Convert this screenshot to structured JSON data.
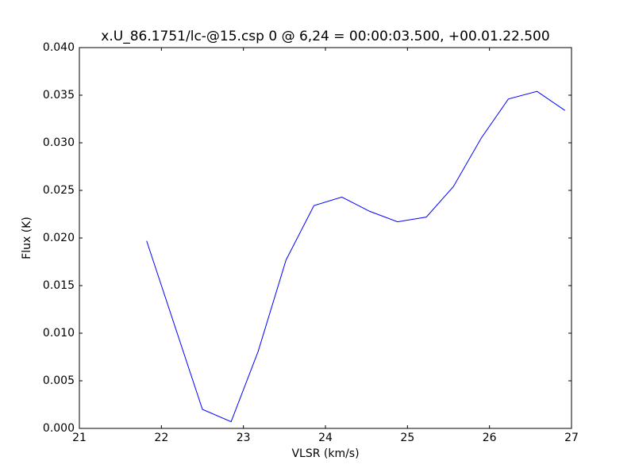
{
  "chart_data": {
    "type": "line",
    "title": "x.U_86.1751/lc-@15.csp 0 @ 6,24 = 00:00:03.500, +00.01.22.500",
    "xlabel": "VLSR (km/s)",
    "ylabel": "Flux (K)",
    "x": [
      21.82,
      22.5,
      22.85,
      23.18,
      23.52,
      23.86,
      24.2,
      24.54,
      24.88,
      25.23,
      25.56,
      25.9,
      26.23,
      26.58,
      26.92
    ],
    "series": [
      {
        "name": "Flux",
        "color": "#0000ff",
        "values": [
          0.0197,
          0.002,
          0.0007,
          0.0081,
          0.0177,
          0.0234,
          0.0243,
          0.0228,
          0.0217,
          0.0222,
          0.0254,
          0.0305,
          0.0346,
          0.0354,
          0.0334
        ]
      }
    ],
    "xlim": [
      21,
      27
    ],
    "xticks": [
      21,
      22,
      23,
      24,
      25,
      26,
      27
    ],
    "ylim": [
      0,
      0.04
    ],
    "yticks": [
      {
        "value": 0,
        "label": "0.000"
      },
      {
        "value": 0.005,
        "label": "0.005"
      },
      {
        "value": 0.01,
        "label": "0.010"
      },
      {
        "value": 0.015,
        "label": "0.015"
      },
      {
        "value": 0.02,
        "label": "0.020"
      },
      {
        "value": 0.025,
        "label": "0.025"
      },
      {
        "value": 0.03,
        "label": "0.030"
      },
      {
        "value": 0.035,
        "label": "0.035"
      },
      {
        "value": 0.04,
        "label": "0.040"
      }
    ]
  }
}
